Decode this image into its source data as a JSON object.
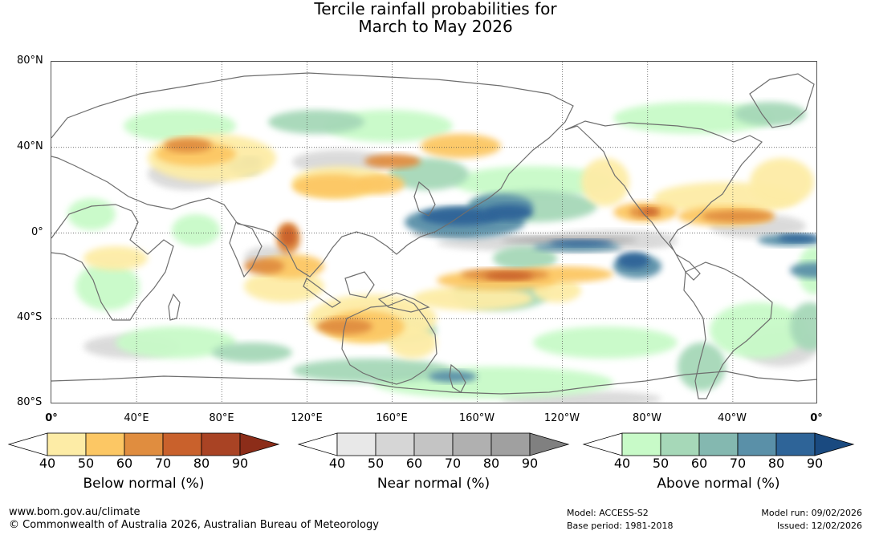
{
  "title": {
    "line1": "Tercile rainfall probabilities for",
    "line2": "March to May 2026"
  },
  "lat_labels": [
    "80°N",
    "40°N",
    "0°",
    "40°S",
    "80°S"
  ],
  "lon_labels": [
    "0°",
    "40°E",
    "80°E",
    "120°E",
    "160°E",
    "160°W",
    "120°W",
    "80°W",
    "40°W",
    "0°"
  ],
  "colorbars": [
    {
      "title": "Below normal (%)",
      "ticks": [
        "40",
        "50",
        "60",
        "70",
        "80",
        "90"
      ],
      "colors": [
        "#ffffff",
        "#fdeca6",
        "#fcc764",
        "#e08d3f",
        "#c9612c",
        "#a94324",
        "#8c2d19"
      ]
    },
    {
      "title": "Near normal (%)",
      "ticks": [
        "40",
        "50",
        "60",
        "70",
        "80",
        "90"
      ],
      "colors": [
        "#ffffff",
        "#e8e8e8",
        "#d6d6d6",
        "#c4c4c4",
        "#b0b0b0",
        "#a0a0a0",
        "#808080"
      ]
    },
    {
      "title": "Above normal (%)",
      "ticks": [
        "40",
        "50",
        "60",
        "70",
        "80",
        "90"
      ],
      "colors": [
        "#ffffff",
        "#c8fac8",
        "#a6d8b8",
        "#84b8b0",
        "#5a90a8",
        "#2e6498",
        "#1a4a80"
      ]
    }
  ],
  "footer": {
    "url": "www.bom.gov.au/climate",
    "copyright": "© Commonwealth of Australia 2026, Australian Bureau of Meteorology",
    "model": "Model: ACCESS-S2",
    "base_period": "Base period: 1981-2018",
    "model_run": "Model run: 09/02/2026",
    "issued": "Issued: 12/02/2026"
  },
  "legend_colors": {
    "below_light": "#fdeca6",
    "below_mid": "#fcc764",
    "below_dark": "#e08d3f",
    "below_darker": "#c9612c",
    "near": "#d9d9d9",
    "near_dark": "#a9a9a9",
    "above_light": "#c8fac8",
    "above_mid": "#a6d8b8",
    "above_dark": "#5a90a8",
    "above_darker": "#2e6498",
    "coast": "#6e6e6e"
  }
}
